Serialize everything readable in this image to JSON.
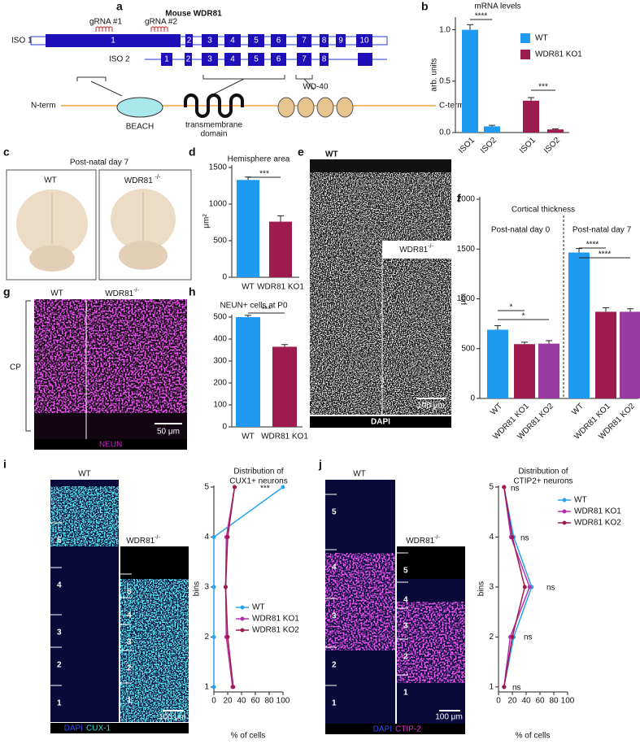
{
  "panel_labels": [
    "a",
    "b",
    "c",
    "d",
    "e",
    "f",
    "g",
    "h",
    "i",
    "j"
  ],
  "gene_diagram": {
    "title": "Mouse WDR81",
    "grnas": [
      "gRNA #1",
      "gRNA #2"
    ],
    "isoforms": [
      {
        "name": "ISO 1",
        "exons": [
          "1",
          "2",
          "3",
          "4",
          "5",
          "6",
          "7",
          "8",
          "9",
          "10"
        ]
      },
      {
        "name": "ISO 2",
        "exons": [
          "1",
          "2",
          "3",
          "4",
          "5",
          "6",
          "7",
          "8"
        ]
      }
    ],
    "n_term": "N-term",
    "c_term": "C-term",
    "domains": {
      "beach": "BEACH",
      "transmembrane": [
        "transmembrane",
        "domain"
      ],
      "wd40": "WD-40"
    }
  },
  "brain_photos": {
    "title": "Post-natal day 7",
    "wt": "WT",
    "ko": {
      "gene": "WDR81",
      "sup": "-/-"
    }
  },
  "dapi_images": {
    "wt": "WT",
    "ko": {
      "gene": "WDR81",
      "sup": "-/-"
    },
    "stain": "DAPI",
    "scale": "100 μm"
  },
  "neun_images": {
    "wt": "WT",
    "ko": {
      "gene": "WDR81",
      "sup": "-/-"
    },
    "region": "CP",
    "stain": "NEUN",
    "scale": "50 μm"
  },
  "cux1_images": {
    "wt": "WT",
    "ko": {
      "gene": "WDR81",
      "sup": "-/-"
    },
    "wt_bins": [
      "5",
      "4",
      "3",
      "2",
      "1"
    ],
    "ko_bins": [
      "5",
      "4",
      "3",
      "2",
      "1"
    ],
    "stains": [
      "DAPI",
      "CUX-1"
    ],
    "scale": "100 μm"
  },
  "ctip2_images": {
    "wt": "WT",
    "ko": {
      "gene": "WDR81",
      "sup": "-/-"
    },
    "wt_bins": [
      "5",
      "4",
      "3",
      "2",
      "1"
    ],
    "ko_bins": [
      "5",
      "4",
      "3",
      "2",
      "1"
    ],
    "stains": [
      "DAPI",
      "CTIP-2"
    ],
    "scale": "100 μm"
  },
  "chart_data": [
    {
      "type": "bar",
      "title": "mRNA levels",
      "ylabel": "arb. units",
      "categories": [
        "ISO1",
        "ISO2",
        "ISO1",
        "ISO2"
      ],
      "series": [
        {
          "name": "WT",
          "color": "#1e9bf0",
          "values": [
            1.0,
            0.06,
            null,
            null
          ],
          "errors": [
            0.05,
            0.01,
            null,
            null
          ]
        },
        {
          "name": "WDR81 KO1",
          "color": "#9e1b4f",
          "values": [
            null,
            null,
            0.31,
            0.03
          ],
          "errors": [
            null,
            null,
            0.03,
            0.005
          ]
        }
      ],
      "ylim": [
        0,
        1.1
      ],
      "yticks": [
        {
          "value": 0,
          "label": "0.0"
        },
        0.5,
        {
          "value": 1,
          "label": "1.0"
        }
      ],
      "significance": [
        "****",
        "***"
      ],
      "legend": "upper right"
    },
    {
      "type": "bar",
      "title": "Hemisphere area",
      "ylabel": "μm²",
      "categories": [
        "WT",
        "WDR81 KO1"
      ],
      "values": [
        1330,
        760
      ],
      "errors": [
        40,
        80
      ],
      "colors": [
        "#1e9bf0",
        "#9e1b4f"
      ],
      "ylim": [
        0,
        1500
      ],
      "yticks": [
        0,
        500,
        1000,
        1500
      ],
      "significance": [
        "***"
      ]
    },
    {
      "type": "bar",
      "title": "Cortical thickness",
      "ylabel": "µm",
      "categories": [
        "WT",
        "WDR81 KO1",
        "WDR81 KO2",
        "WT",
        "WDR81 KO1",
        "WDR81 KO2"
      ],
      "values": [
        690,
        545,
        550,
        1465,
        870,
        870
      ],
      "errors": [
        40,
        20,
        30,
        40,
        40,
        30
      ],
      "colors": [
        "#1e9bf0",
        "#9e1b4f",
        "#9b3aa0",
        "#1e9bf0",
        "#9e1b4f",
        "#9b3aa0"
      ],
      "ylim": [
        0,
        2000
      ],
      "yticks": [
        0,
        500,
        1000,
        1500,
        2000
      ],
      "annotations": [
        "Post-natal day 0",
        "Post-natal day 7"
      ],
      "significance": [
        "*",
        "*",
        "****",
        "****"
      ]
    },
    {
      "type": "bar",
      "title": "NEUN+ cells at P0",
      "categories": [
        "WT",
        "WDR81 KO1"
      ],
      "values": [
        500,
        365
      ],
      "errors": [
        8,
        10
      ],
      "colors": [
        "#1e9bf0",
        "#9e1b4f"
      ],
      "ylim": [
        0,
        500
      ],
      "yticks": [
        0,
        100,
        200,
        300,
        400,
        500
      ],
      "significance": [
        "***"
      ]
    },
    {
      "type": "line",
      "title": [
        "Distribution of",
        "CUX1+ neurons"
      ],
      "ylabel": "bins",
      "xlabel": "% of cells",
      "y": [
        1,
        2,
        3,
        4,
        5
      ],
      "series": [
        {
          "name": "WT",
          "color": "#29a3f0",
          "values": [
            0,
            0,
            0,
            0,
            100
          ]
        },
        {
          "name": "WDR81 KO1",
          "color": "#b530b0",
          "values": [
            27,
            18,
            17,
            18,
            30
          ]
        },
        {
          "name": "WDR81 KO2",
          "color": "#9e1b4f",
          "values": [
            28,
            20,
            17,
            20,
            30
          ]
        }
      ],
      "xlim": [
        0,
        100
      ],
      "xticks": [
        0,
        20,
        40,
        60,
        80,
        100
      ],
      "ylim": [
        0.9,
        5
      ],
      "yticks": [
        1,
        2,
        3,
        4,
        5
      ],
      "annotations": [
        "***"
      ]
    },
    {
      "type": "line",
      "title": [
        "Distribution of",
        "CTIP2+ neurons"
      ],
      "ylabel": "bins",
      "xlabel": "% of cells",
      "y": [
        1,
        2,
        3,
        4,
        5
      ],
      "series": [
        {
          "name": "WT",
          "color": "#29a3f0",
          "values": [
            8,
            22,
            48,
            22,
            8
          ]
        },
        {
          "name": "WDR81 KO1",
          "color": "#b530b0",
          "values": [
            8,
            17,
            45,
            18,
            8
          ]
        },
        {
          "name": "WDR81 KO2",
          "color": "#9e1b4f",
          "values": [
            8,
            20,
            38,
            20,
            8
          ]
        }
      ],
      "xlim": [
        0,
        100
      ],
      "xticks": [
        0,
        20,
        40,
        60,
        80,
        100
      ],
      "ylim": [
        0.9,
        5
      ],
      "yticks": [
        1,
        2,
        3,
        4,
        5
      ],
      "annotations": [
        "ns",
        "ns",
        "ns",
        "ns",
        "ns"
      ]
    }
  ]
}
